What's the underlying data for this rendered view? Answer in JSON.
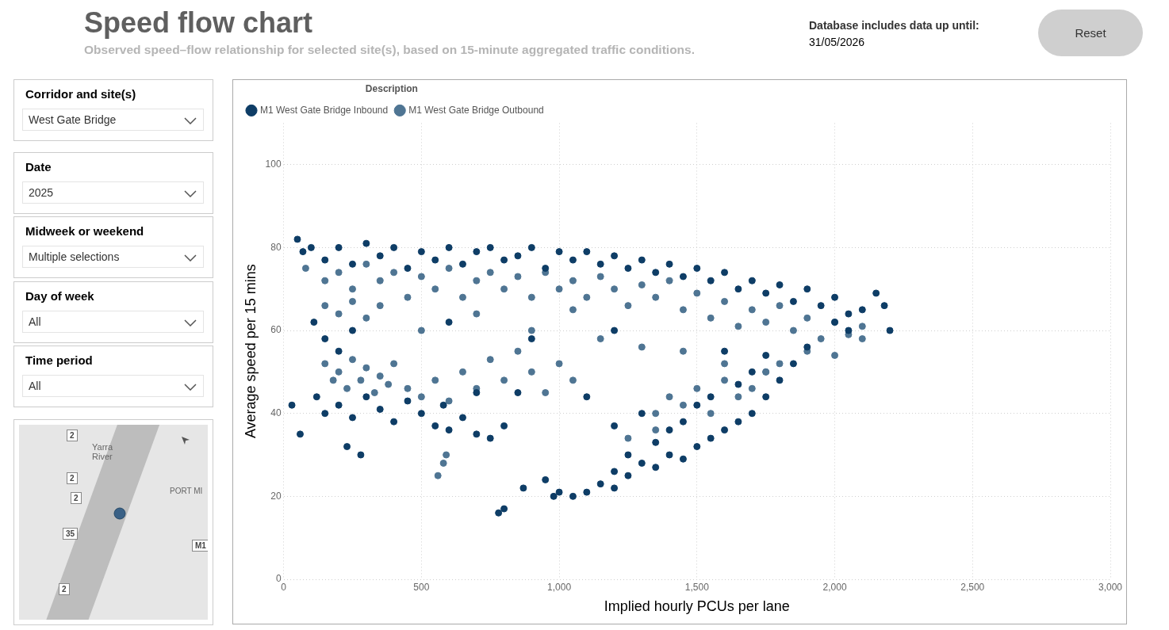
{
  "chart_data": [
    {
      "type": "scatter",
      "title": "Speed flow chart",
      "subtitle": "Observed speed–flow relationship for selected site(s), based on 15-minute aggregated traffic conditions.",
      "xlabel": "Implied hourly PCUs per lane",
      "ylabel": "Average speed per 15 mins",
      "legend_title": "Description",
      "legend": "top left",
      "grid": true,
      "marker": "circle",
      "xlim": [
        0,
        3000
      ],
      "xticks": [
        0,
        500,
        {
          "value": 1000,
          "label": "1,000"
        },
        {
          "value": 1500,
          "label": "1,500"
        },
        {
          "value": 2000,
          "label": "2,000"
        },
        {
          "value": 2500,
          "label": "2,500"
        },
        {
          "value": 3000,
          "label": "3,000"
        }
      ],
      "ylim": [
        0,
        110
      ],
      "yticks": [
        0,
        20,
        40,
        60,
        80,
        100
      ],
      "series": [
        {
          "name": "M1 West Gate Bridge Inbound",
          "color": "#0e3d66",
          "x": [
            50,
            70,
            100,
            150,
            200,
            250,
            300,
            350,
            400,
            450,
            500,
            550,
            600,
            650,
            700,
            750,
            800,
            850,
            900,
            950,
            1000,
            1050,
            1100,
            1150,
            1200,
            1250,
            1300,
            1350,
            1400,
            1450,
            1500,
            1550,
            1600,
            1650,
            1700,
            1750,
            1800,
            1850,
            1900,
            1950,
            2000,
            2050,
            2100,
            2150,
            2180,
            2200,
            110,
            150,
            200,
            250,
            600,
            900,
            1200,
            1600,
            2000,
            2050,
            30,
            60,
            120,
            150,
            200,
            250,
            300,
            350,
            400,
            450,
            500,
            550,
            580,
            600,
            650,
            700,
            750,
            800,
            850,
            700,
            230,
            280,
            780,
            800,
            870,
            950,
            980,
            1050,
            1000,
            1100,
            1150,
            1200,
            1250,
            1200,
            1300,
            1250,
            1350,
            1400,
            1350,
            1450,
            1400,
            1500,
            1450,
            1550,
            1500,
            1600,
            1550,
            1650,
            1700,
            1650,
            1750,
            1700,
            1800,
            1750,
            1850,
            1900,
            1300,
            1200,
            1100
          ],
          "values": [
            82,
            79,
            80,
            77,
            80,
            76,
            81,
            78,
            80,
            75,
            79,
            77,
            80,
            76,
            79,
            80,
            77,
            78,
            80,
            75,
            79,
            77,
            79,
            76,
            78,
            75,
            77,
            74,
            76,
            73,
            75,
            72,
            74,
            70,
            72,
            69,
            71,
            67,
            70,
            66,
            68,
            64,
            65,
            69,
            66,
            60,
            62,
            58,
            55,
            60,
            62,
            58,
            60,
            55,
            62,
            60,
            42,
            35,
            44,
            40,
            42,
            39,
            44,
            41,
            38,
            43,
            40,
            37,
            42,
            36,
            39,
            35,
            34,
            37,
            45,
            45,
            32,
            30,
            16,
            17,
            22,
            24,
            20,
            20,
            21,
            21,
            23,
            22,
            25,
            26,
            28,
            30,
            27,
            30,
            33,
            29,
            36,
            32,
            38,
            34,
            42,
            36,
            44,
            38,
            40,
            47,
            44,
            50,
            48,
            54,
            52,
            56,
            40,
            37,
            44
          ]
        },
        {
          "name": "M1 West Gate Bridge Outbound",
          "color": "#4f7593",
          "x": [
            80,
            150,
            200,
            250,
            300,
            350,
            400,
            450,
            500,
            550,
            600,
            650,
            700,
            750,
            800,
            850,
            900,
            950,
            1000,
            1050,
            1100,
            1150,
            1200,
            1250,
            1300,
            1350,
            1400,
            1450,
            1500,
            1550,
            1600,
            1650,
            1700,
            1750,
            1800,
            1850,
            1900,
            1950,
            2000,
            2050,
            2100,
            150,
            200,
            250,
            300,
            350,
            500,
            700,
            900,
            1050,
            1150,
            1300,
            1450,
            1600,
            1750,
            1900,
            2000,
            2100,
            150,
            180,
            200,
            230,
            250,
            280,
            300,
            330,
            350,
            380,
            400,
            450,
            500,
            550,
            600,
            650,
            700,
            750,
            800,
            850,
            900,
            950,
            1000,
            1050,
            580,
            560,
            590,
            1350,
            1400,
            1450,
            1500,
            1550,
            1600,
            1650,
            1700,
            1750,
            1800,
            1350,
            1250
          ],
          "values": [
            75,
            72,
            74,
            70,
            76,
            72,
            74,
            68,
            73,
            70,
            75,
            68,
            72,
            74,
            70,
            73,
            68,
            74,
            70,
            72,
            68,
            73,
            70,
            66,
            71,
            68,
            72,
            65,
            69,
            63,
            67,
            61,
            65,
            62,
            66,
            60,
            63,
            58,
            62,
            59,
            61,
            66,
            64,
            67,
            63,
            66,
            60,
            64,
            60,
            65,
            58,
            56,
            55,
            52,
            50,
            55,
            54,
            58,
            52,
            48,
            50,
            46,
            53,
            48,
            51,
            45,
            49,
            47,
            52,
            46,
            44,
            48,
            43,
            50,
            46,
            53,
            48,
            55,
            50,
            45,
            52,
            48,
            28,
            25,
            30,
            40,
            44,
            42,
            46,
            40,
            48,
            44,
            46,
            50,
            52,
            36,
            34
          ]
        }
      ]
    },
    {
      "type": "other",
      "annotations": [
        "Corridor and site(s)",
        "West Gate Bridge",
        "Date",
        "2025",
        "Midweek or weekend",
        "Multiple selections",
        "Day of week",
        "All",
        "Time period",
        "All",
        "Database includes data up until:",
        "31/05/2026",
        "Reset",
        "2",
        "2",
        "2",
        "35",
        "2",
        "M1",
        "Yarra River",
        "PORT MI"
      ]
    }
  ]
}
